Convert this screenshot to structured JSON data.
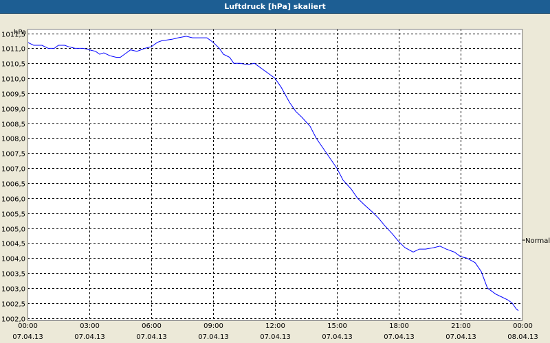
{
  "window": {
    "title": "Luftdruck [hPa] skaliert"
  },
  "colors": {
    "background": "#ECE9D8",
    "plot_background": "#FFFFFF",
    "line": "#0000FF",
    "grid": "#000000",
    "title_bar": "#1D5E93"
  },
  "chart_data": {
    "type": "line",
    "title": "Luftdruck [hPa] skaliert",
    "ylabel": "hPa",
    "xlabel": "",
    "ylim": [
      1001.9,
      1011.65
    ],
    "xlim_hours": [
      0,
      24
    ],
    "grid": true,
    "y_ticks": [
      "1002,0",
      "1002,5",
      "1003,0",
      "1003,5",
      "1004,0",
      "1004,5",
      "1005,0",
      "1005,5",
      "1006,0",
      "1006,5",
      "1007,0",
      "1007,5",
      "1008,0",
      "1008,5",
      "1009,0",
      "1009,5",
      "1010,0",
      "1010,5",
      "1011,0",
      "1011,5"
    ],
    "x_ticks": [
      {
        "time": "00:00",
        "date": "07.04.13"
      },
      {
        "time": "03:00",
        "date": "07.04.13"
      },
      {
        "time": "06:00",
        "date": "07.04.13"
      },
      {
        "time": "09:00",
        "date": "07.04.13"
      },
      {
        "time": "12:00",
        "date": "07.04.13"
      },
      {
        "time": "15:00",
        "date": "07.04.13"
      },
      {
        "time": "18:00",
        "date": "07.04.13"
      },
      {
        "time": "21:00",
        "date": "07.04.13"
      },
      {
        "time": "00:00",
        "date": "08.04.13"
      }
    ],
    "reference_line": {
      "label": "Normal",
      "value": 1004.6
    },
    "series": [
      {
        "x": [
          0,
          0.3,
          0.7,
          1,
          1.3,
          1.5,
          1.8,
          2,
          2.3,
          2.7,
          3,
          3.3,
          3.5,
          3.7,
          4,
          4.3,
          4.5,
          4.8,
          5,
          5.3,
          5.7,
          6,
          6.3,
          6.5,
          7,
          7.3,
          7.7,
          8,
          8.3,
          8.7,
          9,
          9.3,
          9.5,
          9.8,
          10,
          10.3,
          10.7,
          11,
          11.3,
          11.7,
          12,
          12.3,
          12.7,
          13,
          13.3,
          13.7,
          14,
          14.3,
          14.7,
          15,
          15.3,
          15.7,
          16,
          16.3,
          16.7,
          17,
          17.3,
          17.7,
          18,
          18.3,
          18.7,
          19,
          19.3,
          19.7,
          20,
          20.3,
          20.7,
          21,
          21.3,
          21.7,
          22,
          22.3,
          22.7,
          23,
          23.3,
          23.5,
          23.7,
          23.8
        ],
        "y": [
          1011.2,
          1011.1,
          1011.1,
          1011.0,
          1011.0,
          1011.1,
          1011.1,
          1011.05,
          1011.0,
          1011.0,
          1010.95,
          1010.9,
          1010.8,
          1010.85,
          1010.75,
          1010.7,
          1010.7,
          1010.85,
          1010.95,
          1010.9,
          1011.0,
          1011.05,
          1011.2,
          1011.25,
          1011.3,
          1011.35,
          1011.4,
          1011.35,
          1011.35,
          1011.35,
          1011.2,
          1011.0,
          1010.8,
          1010.7,
          1010.5,
          1010.5,
          1010.45,
          1010.5,
          1010.35,
          1010.15,
          1010.0,
          1009.7,
          1009.2,
          1008.9,
          1008.7,
          1008.4,
          1008.0,
          1007.7,
          1007.3,
          1007.0,
          1006.6,
          1006.3,
          1006.0,
          1005.8,
          1005.55,
          1005.35,
          1005.1,
          1004.8,
          1004.55,
          1004.35,
          1004.2,
          1004.3,
          1004.3,
          1004.35,
          1004.4,
          1004.3,
          1004.2,
          1004.05,
          1004.0,
          1003.85,
          1003.55,
          1003.0,
          1002.8,
          1002.7,
          1002.6,
          1002.5,
          1002.3,
          1002.25
        ]
      }
    ]
  }
}
